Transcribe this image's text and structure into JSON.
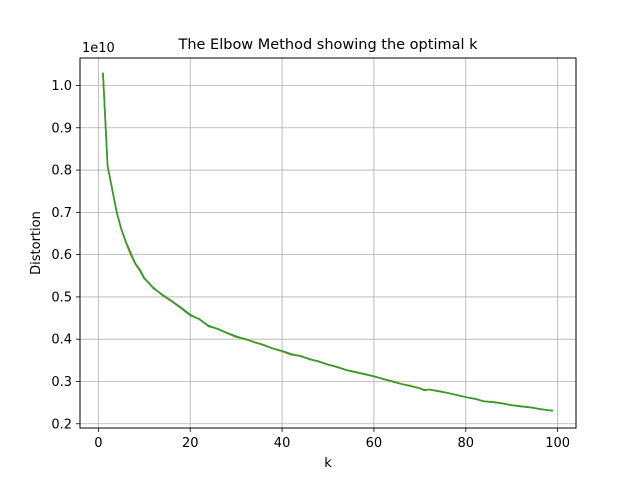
{
  "chart_data": {
    "type": "line",
    "title": "The Elbow Method showing the optimal k",
    "xlabel": "k",
    "ylabel": "Distortion",
    "y_offset_label": "1e10",
    "y_multiplier": 10000000000.0,
    "xlim": [
      -4,
      104
    ],
    "ylim": [
      0.19,
      1.065
    ],
    "xticks": [
      0,
      20,
      40,
      60,
      80,
      100
    ],
    "yticks": [
      0.2,
      0.3,
      0.4,
      0.5,
      0.6,
      0.7,
      0.8,
      0.9,
      1.0
    ],
    "xtick_labels": [
      "0",
      "20",
      "40",
      "60",
      "80",
      "100"
    ],
    "ytick_labels": [
      "0.2",
      "0.3",
      "0.4",
      "0.5",
      "0.6",
      "0.7",
      "0.8",
      "0.9",
      "1.0"
    ],
    "grid": true,
    "legend": "none",
    "colors": [
      "#1f77b4",
      "#ff7f0e",
      "#2ca02c"
    ],
    "x": [
      1,
      2,
      3,
      4,
      5,
      6,
      7,
      8,
      9,
      10,
      12,
      14,
      16,
      18,
      20,
      22,
      24,
      26,
      28,
      30,
      32,
      34,
      36,
      38,
      40,
      42,
      44,
      46,
      48,
      50,
      52,
      54,
      56,
      58,
      60,
      62,
      64,
      66,
      68,
      70,
      71,
      72,
      74,
      76,
      78,
      80,
      82,
      84,
      86,
      88,
      90,
      92,
      94,
      96,
      98,
      99
    ],
    "series": [
      {
        "values": [
          1.03,
          0.81,
          0.755,
          0.7,
          0.66,
          0.63,
          0.605,
          0.58,
          0.565,
          0.545,
          0.52,
          0.505,
          0.49,
          0.475,
          0.458,
          0.447,
          0.432,
          0.424,
          0.415,
          0.407,
          0.4,
          0.393,
          0.386,
          0.378,
          0.372,
          0.365,
          0.36,
          0.353,
          0.347,
          0.34,
          0.334,
          0.327,
          0.322,
          0.318,
          0.312,
          0.306,
          0.3,
          0.294,
          0.289,
          0.284,
          0.279,
          0.281,
          0.277,
          0.273,
          0.268,
          0.263,
          0.259,
          0.253,
          0.251,
          0.248,
          0.244,
          0.241,
          0.239,
          0.235,
          0.232,
          0.231
        ]
      },
      {
        "values": [
          1.03,
          0.81,
          0.755,
          0.7,
          0.66,
          0.628,
          0.6,
          0.578,
          0.562,
          0.543,
          0.522,
          0.503,
          0.489,
          0.473,
          0.456,
          0.448,
          0.43,
          0.425,
          0.414,
          0.405,
          0.401,
          0.392,
          0.387,
          0.378,
          0.371,
          0.363,
          0.361,
          0.352,
          0.348,
          0.34,
          0.335,
          0.327,
          0.323,
          0.317,
          0.313,
          0.306,
          0.301,
          0.294,
          0.29,
          0.284,
          0.28,
          0.281,
          0.278,
          0.273,
          0.268,
          0.263,
          0.259,
          0.253,
          0.252,
          0.248,
          0.244,
          0.242,
          0.239,
          0.235,
          0.232,
          0.231
        ]
      },
      {
        "values": [
          1.03,
          0.81,
          0.755,
          0.7,
          0.66,
          0.63,
          0.604,
          0.58,
          0.564,
          0.544,
          0.521,
          0.504,
          0.49,
          0.474,
          0.457,
          0.447,
          0.431,
          0.424,
          0.415,
          0.406,
          0.4,
          0.393,
          0.386,
          0.378,
          0.372,
          0.364,
          0.36,
          0.353,
          0.347,
          0.34,
          0.334,
          0.327,
          0.322,
          0.317,
          0.312,
          0.306,
          0.3,
          0.294,
          0.289,
          0.284,
          0.279,
          0.281,
          0.277,
          0.273,
          0.268,
          0.263,
          0.259,
          0.253,
          0.251,
          0.248,
          0.244,
          0.241,
          0.239,
          0.235,
          0.232,
          0.231
        ]
      }
    ]
  }
}
